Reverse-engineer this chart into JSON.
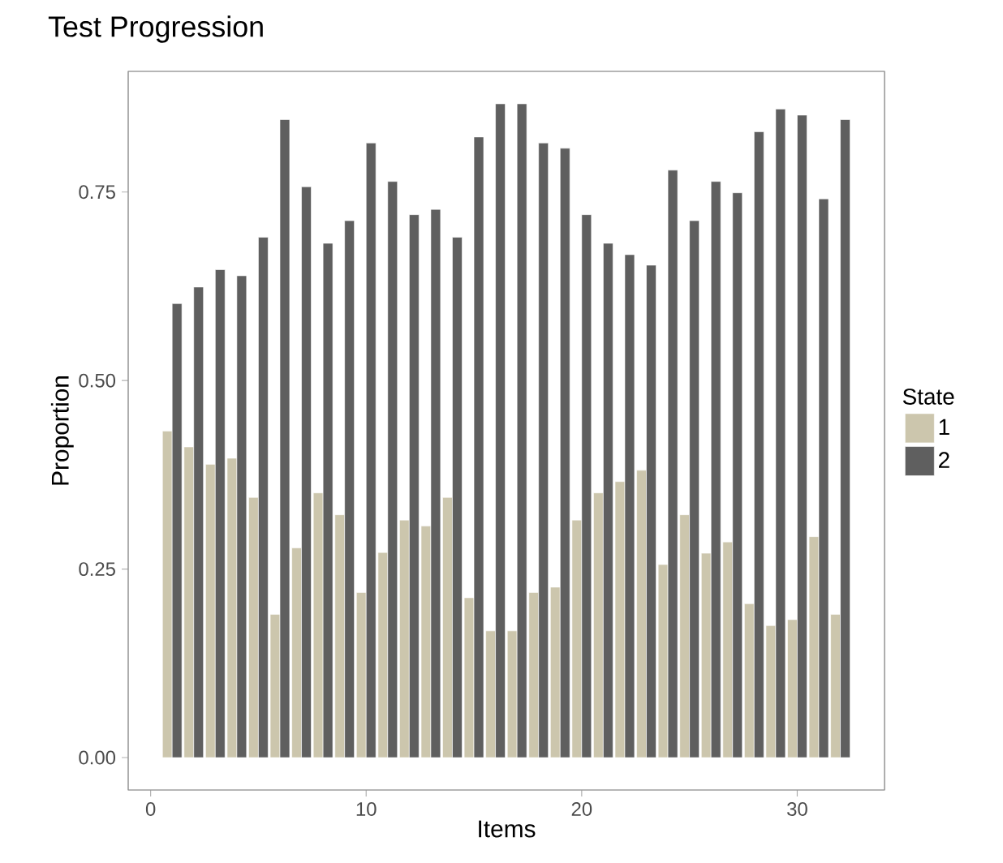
{
  "chart_data": {
    "type": "bar",
    "title": "Test Progression",
    "xlabel": "Items",
    "ylabel": "Proportion",
    "legend_title": "State",
    "legend": "right",
    "grid": false,
    "x": [
      1,
      2,
      3,
      4,
      5,
      6,
      7,
      8,
      9,
      10,
      11,
      12,
      13,
      14,
      15,
      16,
      17,
      18,
      19,
      20,
      21,
      22,
      23,
      24,
      25,
      26,
      27,
      28,
      29,
      30,
      31,
      32
    ],
    "series": [
      {
        "name": "1",
        "color": "#ccc6ad",
        "values": [
          0.433,
          0.412,
          0.389,
          0.397,
          0.345,
          0.19,
          0.278,
          0.351,
          0.322,
          0.219,
          0.272,
          0.315,
          0.307,
          0.345,
          0.212,
          0.168,
          0.168,
          0.219,
          0.226,
          0.315,
          0.351,
          0.366,
          0.381,
          0.256,
          0.322,
          0.271,
          0.286,
          0.204,
          0.175,
          0.183,
          0.293,
          0.19
        ]
      },
      {
        "name": "2",
        "color": "#5f5f5f",
        "values": [
          0.602,
          0.624,
          0.647,
          0.639,
          0.69,
          0.846,
          0.757,
          0.682,
          0.712,
          0.815,
          0.764,
          0.72,
          0.727,
          0.69,
          0.823,
          0.867,
          0.867,
          0.815,
          0.808,
          0.72,
          0.682,
          0.667,
          0.653,
          0.779,
          0.712,
          0.764,
          0.749,
          0.83,
          0.86,
          0.852,
          0.741,
          0.846
        ]
      }
    ],
    "xlim": [
      -1.04,
      34.05
    ],
    "xticks": [
      0,
      10,
      20,
      30
    ],
    "ylim": [
      -0.043,
      0.91
    ],
    "yticks": [
      {
        "value": 0,
        "label": "0.00"
      },
      {
        "value": 0.25,
        "label": "0.25"
      },
      {
        "value": 0.5,
        "label": "0.50"
      },
      {
        "value": 0.75,
        "label": "0.75"
      }
    ]
  }
}
